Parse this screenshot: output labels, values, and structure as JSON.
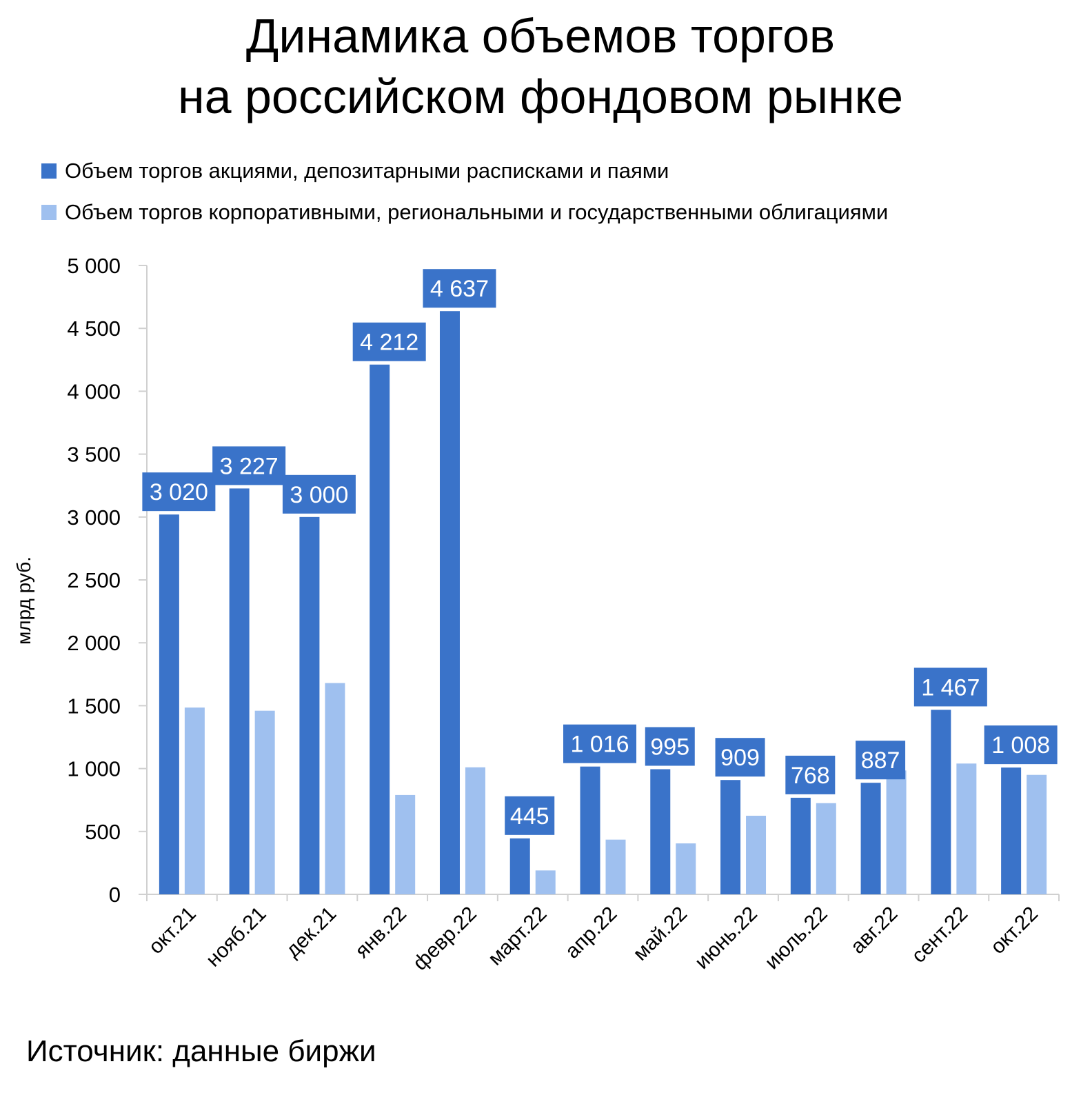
{
  "chart_data": {
    "type": "bar",
    "title_lines": [
      "Динамика объемов торгов",
      "на российском фондовом рынке"
    ],
    "categories": [
      "окт.21",
      "нояб.21",
      "дек.21",
      "янв.22",
      "февр.22",
      "март.22",
      "апр.22",
      "май.22",
      "июнь.22",
      "июль.22",
      "авг.22",
      "сент.22",
      "окт.22"
    ],
    "series": [
      {
        "name": "Объем торгов акциями, депозитарными расписками и паями",
        "color": "#3a73c9",
        "values": [
          3020,
          3227,
          3000,
          4212,
          4637,
          445,
          1016,
          995,
          909,
          768,
          887,
          1467,
          1008
        ],
        "labels": [
          "3 020",
          "3 227",
          "3 000",
          "4 212",
          "4 637",
          "445",
          "1 016",
          "995",
          "909",
          "768",
          "887",
          "1 467",
          "1 008"
        ]
      },
      {
        "name": "Объем торгов корпоративными, региональными и государственными облигациями",
        "color": "#9fc0ef",
        "values": [
          1485,
          1460,
          1680,
          790,
          1010,
          190,
          435,
          405,
          625,
          725,
          985,
          1040,
          950
        ]
      }
    ],
    "ylabel": "млрд руб.",
    "ylim": [
      0,
      5000
    ],
    "yticks": [
      0,
      500,
      1000,
      1500,
      2000,
      2500,
      3000,
      3500,
      4000,
      4500,
      5000
    ],
    "ytick_labels": [
      "0",
      "500",
      "1 000",
      "1 500",
      "2 000",
      "2 500",
      "3 000",
      "3 500",
      "4 000",
      "4 500",
      "5 000"
    ],
    "grid": false,
    "legend_position": "top-left"
  },
  "source": "Источник: данные биржи"
}
